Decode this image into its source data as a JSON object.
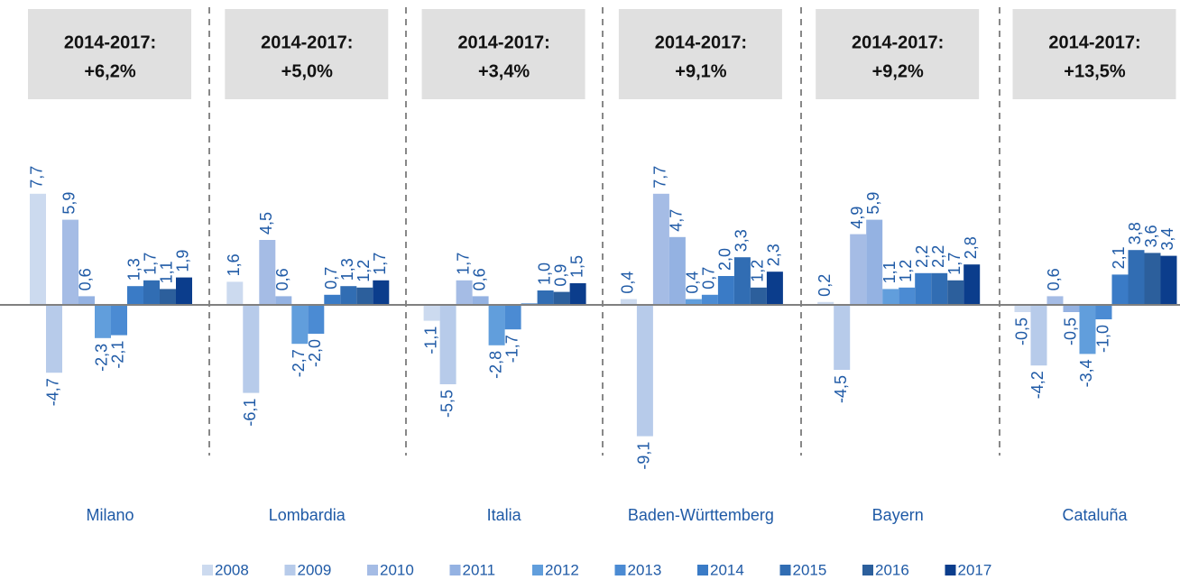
{
  "chart_data": {
    "type": "bar",
    "categories": [
      "Milano",
      "Lombardia",
      "Italia",
      "Baden-Württemberg",
      "Bayern",
      "Cataluña"
    ],
    "summaries": [
      [
        "2014-2017:",
        "+6,2%"
      ],
      [
        "2014-2017:",
        "+5,0%"
      ],
      [
        "2014-2017:",
        "+3,4%"
      ],
      [
        "2014-2017:",
        "+9,1%"
      ],
      [
        "2014-2017:",
        "+9,2%"
      ],
      [
        "2014-2017:",
        "+13,5%"
      ]
    ],
    "series": [
      {
        "name": "2008",
        "color": "#ccdaef",
        "values": [
          7.7,
          1.6,
          -1.1,
          0.4,
          0.2,
          -0.5
        ],
        "value_labels": [
          "7,7",
          "1,6",
          "-1,1",
          "0,4",
          "0,2",
          "-0,5"
        ]
      },
      {
        "name": "2009",
        "color": "#b7cbea",
        "values": [
          -4.7,
          -6.1,
          -5.5,
          -9.1,
          -4.5,
          -4.2
        ],
        "value_labels": [
          "-4,7",
          "-6,1",
          "-5,5",
          "-9,1",
          "-4,5",
          "-4,2"
        ]
      },
      {
        "name": "2010",
        "color": "#a5bce5",
        "values": [
          5.9,
          4.5,
          1.7,
          7.7,
          4.9,
          0.6
        ],
        "value_labels": [
          "5,9",
          "4,5",
          "1,7",
          "7,7",
          "4,9",
          "0,6"
        ]
      },
      {
        "name": "2011",
        "color": "#94b2e2",
        "values": [
          0.6,
          0.6,
          0.6,
          4.7,
          5.9,
          -0.5
        ],
        "value_labels": [
          "0,6",
          "0,6",
          "0,6",
          "4,7",
          "5,9",
          "-0,5"
        ]
      },
      {
        "name": "2012",
        "color": "#619edc",
        "values": [
          -2.3,
          -2.7,
          -2.8,
          0.4,
          1.1,
          -3.4
        ],
        "value_labels": [
          "-2,3",
          "-2,7",
          "-2,8",
          "0,4",
          "1,1",
          "-3,4"
        ]
      },
      {
        "name": "2013",
        "color": "#4b8bd3",
        "values": [
          -2.1,
          -2.0,
          -1.7,
          0.7,
          1.2,
          -1.0
        ],
        "value_labels": [
          "-2,1",
          "-2,0",
          "-1,7",
          "0,7",
          "1,2",
          "-1,0"
        ]
      },
      {
        "name": "2014",
        "color": "#3a7bc6",
        "values": [
          1.3,
          0.7,
          0.1,
          2.0,
          2.2,
          2.1
        ],
        "value_labels": [
          "1,3",
          "0,7",
          null,
          "2,0",
          "2,2",
          "2,1"
        ]
      },
      {
        "name": "2015",
        "color": "#316db3",
        "values": [
          1.7,
          1.3,
          1.0,
          3.3,
          2.2,
          3.8
        ],
        "value_labels": [
          "1,7",
          "1,3",
          "1,0",
          "3,3",
          "2,2",
          "3,8"
        ]
      },
      {
        "name": "2016",
        "color": "#2c5f9c",
        "values": [
          1.1,
          1.2,
          0.9,
          1.2,
          1.7,
          3.6
        ],
        "value_labels": [
          "1,1",
          "1,2",
          "0,9",
          "1,2",
          "1,7",
          "3,6"
        ]
      },
      {
        "name": "2017",
        "color": "#0b3d8c",
        "values": [
          1.9,
          1.7,
          1.5,
          2.3,
          2.8,
          3.4
        ],
        "value_labels": [
          "1,9",
          "1,7",
          "1,5",
          "2,3",
          "2,8",
          "3,4"
        ]
      }
    ]
  }
}
